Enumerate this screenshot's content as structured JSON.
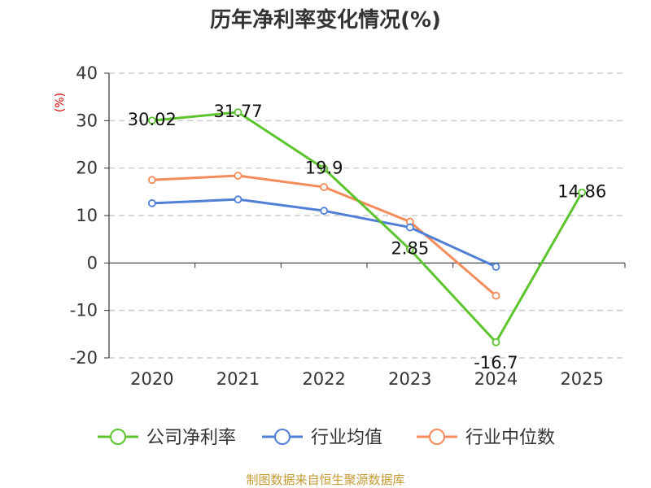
{
  "chart_data": {
    "type": "line",
    "title": "历年净利率变化情况(%)",
    "ylabel": "(%)",
    "categories": [
      "2020",
      "2021",
      "2022",
      "2023",
      "2024",
      "2025"
    ],
    "ylim": [
      -20,
      40
    ],
    "yticks": [
      -20,
      -10,
      0,
      10,
      20,
      30,
      40
    ],
    "grid": true,
    "legend_position": "bottom",
    "series": [
      {
        "name": "公司净利率",
        "color": "#5dc42d",
        "values": [
          30.02,
          31.77,
          19.9,
          2.85,
          -16.7,
          14.86
        ],
        "labels": [
          "30.02",
          "31.77",
          "19.9",
          "2.85",
          "-16.7",
          "14.86"
        ]
      },
      {
        "name": "行业均值",
        "color": "#4f7fd6",
        "values": [
          12.6,
          13.4,
          11.0,
          7.5,
          -0.8,
          null
        ]
      },
      {
        "name": "行业中位数",
        "color": "#f48b5a",
        "values": [
          17.5,
          18.4,
          16.0,
          8.7,
          -6.9,
          null
        ]
      }
    ]
  },
  "source": "制图数据来自恒生聚源数据库"
}
